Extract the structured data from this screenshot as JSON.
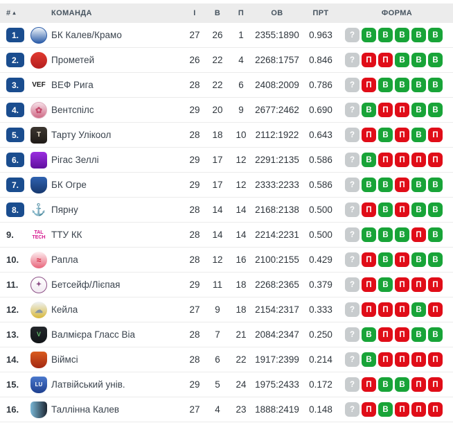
{
  "columns": {
    "rank": "#",
    "team": "КОМАНДА",
    "games": "І",
    "wins": "В",
    "losses": "П",
    "points": "ОВ",
    "pct": "ПРТ",
    "form": "ФОРМА"
  },
  "sort_icon": "▴",
  "colors": {
    "rank_badge": "#1a4d8f",
    "form_win": "#18a438",
    "form_loss": "#e00d18",
    "form_unknown": "#c8ccce",
    "header_bg": "#ececec"
  },
  "form_letters": {
    "win": "В",
    "loss": "П",
    "unknown": "?"
  },
  "table": {
    "rows": [
      {
        "rank": "1.",
        "badge": true,
        "name": "БК Калев/Крамо",
        "games": "27",
        "wins": "26",
        "losses": "1",
        "ov": "2355:1890",
        "pct": "0.963",
        "form": [
          "?",
          "В",
          "В",
          "В",
          "В",
          "В"
        ],
        "logo": {
          "type": "circle",
          "c1": "#f2f6fb",
          "c2": "#2b5ca8",
          "border": "#2b5ca8",
          "text": "",
          "tc": "#ffffff",
          "fs": 9
        }
      },
      {
        "rank": "2.",
        "badge": true,
        "name": "Прометей",
        "games": "26",
        "wins": "22",
        "losses": "4",
        "ov": "2268:1757",
        "pct": "0.846",
        "form": [
          "?",
          "П",
          "П",
          "В",
          "В",
          "В"
        ],
        "logo": {
          "type": "circle",
          "c1": "#e03a30",
          "c2": "#b51f1f",
          "text": "",
          "tc": "#ffffff",
          "fs": 9
        }
      },
      {
        "rank": "3.",
        "badge": true,
        "name": "ВЕФ Рига",
        "games": "28",
        "wins": "22",
        "losses": "6",
        "ov": "2408:2009",
        "pct": "0.786",
        "form": [
          "?",
          "П",
          "В",
          "В",
          "В",
          "В"
        ],
        "logo": {
          "type": "text",
          "text": "VEF",
          "tc": "#1b1b1b",
          "fs": 10
        }
      },
      {
        "rank": "4.",
        "badge": true,
        "name": "Вентспілс",
        "games": "29",
        "wins": "20",
        "losses": "9",
        "ov": "2677:2462",
        "pct": "0.690",
        "form": [
          "?",
          "В",
          "П",
          "П",
          "В",
          "В"
        ],
        "logo": {
          "type": "circle",
          "c1": "#f6dfe7",
          "c2": "#cf6a85",
          "border": "#dfb0bf",
          "text": "✿",
          "tc": "#c2486a",
          "fs": 12
        }
      },
      {
        "rank": "5.",
        "badge": true,
        "name": "Тарту Улікоол",
        "games": "28",
        "wins": "18",
        "losses": "10",
        "ov": "2112:1922",
        "pct": "0.643",
        "form": [
          "?",
          "П",
          "В",
          "П",
          "В",
          "П"
        ],
        "logo": {
          "type": "square",
          "c1": "#3d3731",
          "c2": "#1f1b17",
          "text": "T",
          "tc": "#e8ddc8",
          "fs": 10
        }
      },
      {
        "rank": "6.",
        "badge": true,
        "name": "Рігас Зеллі",
        "games": "29",
        "wins": "17",
        "losses": "12",
        "ov": "2291:2135",
        "pct": "0.586",
        "form": [
          "?",
          "В",
          "П",
          "П",
          "П",
          "П"
        ],
        "logo": {
          "type": "square",
          "c1": "#9b2ee0",
          "c2": "#5f0f9e",
          "text": "",
          "tc": "#ffffff",
          "fs": 9
        }
      },
      {
        "rank": "7.",
        "badge": true,
        "name": "БК Огре",
        "games": "29",
        "wins": "17",
        "losses": "12",
        "ov": "2333:2233",
        "pct": "0.586",
        "form": [
          "?",
          "В",
          "В",
          "П",
          "В",
          "В"
        ],
        "logo": {
          "type": "shield",
          "c1": "#2f62b0",
          "c2": "#16386e",
          "text": "",
          "tc": "#ffffff",
          "fs": 9
        }
      },
      {
        "rank": "8.",
        "badge": true,
        "name": "Пярну",
        "games": "28",
        "wins": "14",
        "losses": "14",
        "ov": "2168:2138",
        "pct": "0.500",
        "form": [
          "?",
          "П",
          "В",
          "П",
          "В",
          "В"
        ],
        "logo": {
          "type": "text",
          "text": "⚓",
          "tc": "#6fbcd8",
          "fs": 17
        }
      },
      {
        "rank": "9.",
        "badge": false,
        "name": "ТТУ КК",
        "games": "28",
        "wins": "14",
        "losses": "14",
        "ov": "2214:2231",
        "pct": "0.500",
        "form": [
          "?",
          "В",
          "В",
          "В",
          "П",
          "В"
        ],
        "logo": {
          "type": "text",
          "text": "TAL\nTECH",
          "tc": "#d4148c",
          "fs": 7
        }
      },
      {
        "rank": "10.",
        "badge": false,
        "name": "Рапла",
        "games": "28",
        "wins": "12",
        "losses": "16",
        "ov": "2100:2155",
        "pct": "0.429",
        "form": [
          "?",
          "П",
          "В",
          "П",
          "В",
          "В"
        ],
        "logo": {
          "type": "circle",
          "c1": "#fdeef0",
          "c2": "#e8647a",
          "text": "≈",
          "tc": "#d42840",
          "fs": 12
        }
      },
      {
        "rank": "11.",
        "badge": false,
        "name": "Бетсейф/Лієпая",
        "games": "29",
        "wins": "11",
        "losses": "18",
        "ov": "2268:2365",
        "pct": "0.379",
        "form": [
          "?",
          "П",
          "В",
          "П",
          "П",
          "П"
        ],
        "logo": {
          "type": "circle",
          "c1": "#ffffff",
          "c2": "#f2eaf2",
          "border": "#8c4f86",
          "text": "✦",
          "tc": "#8c4f86",
          "fs": 10
        }
      },
      {
        "rank": "12.",
        "badge": false,
        "name": "Кейла",
        "games": "27",
        "wins": "9",
        "losses": "18",
        "ov": "2154:2317",
        "pct": "0.333",
        "form": [
          "?",
          "П",
          "П",
          "П",
          "В",
          "П"
        ],
        "logo": {
          "type": "circle",
          "c1": "#eef2f5",
          "c2": "#d8b83a",
          "text": "☁",
          "tc": "#8896a2",
          "fs": 12
        }
      },
      {
        "rank": "13.",
        "badge": false,
        "name": "Валмієра Гласс Віа",
        "games": "28",
        "wins": "7",
        "losses": "21",
        "ov": "2084:2347",
        "pct": "0.250",
        "form": [
          "?",
          "В",
          "П",
          "П",
          "В",
          "В"
        ],
        "logo": {
          "type": "shield",
          "c1": "#23272b",
          "c2": "#121518",
          "text": "V",
          "tc": "#5fb568",
          "fs": 9
        }
      },
      {
        "rank": "14.",
        "badge": false,
        "name": "Віймсі",
        "games": "28",
        "wins": "6",
        "losses": "22",
        "ov": "1917:2399",
        "pct": "0.214",
        "form": [
          "?",
          "В",
          "П",
          "П",
          "П",
          "П"
        ],
        "logo": {
          "type": "shield",
          "c1": "#d95b1e",
          "c2": "#a32813",
          "text": "",
          "tc": "#ffffff",
          "fs": 9
        }
      },
      {
        "rank": "15.",
        "badge": false,
        "name": "Латвійський унів.",
        "games": "29",
        "wins": "5",
        "losses": "24",
        "ov": "1975:2433",
        "pct": "0.172",
        "form": [
          "?",
          "П",
          "В",
          "В",
          "П",
          "П"
        ],
        "logo": {
          "type": "shield",
          "c1": "#4a78cc",
          "c2": "#1e3f8f",
          "text": "LU",
          "tc": "#ffffff",
          "fs": 8
        }
      },
      {
        "rank": "16.",
        "badge": false,
        "name": "Таллінна Калев",
        "games": "27",
        "wins": "4",
        "losses": "23",
        "ov": "1888:2419",
        "pct": "0.148",
        "form": [
          "?",
          "П",
          "В",
          "П",
          "П",
          "П"
        ],
        "logo": {
          "type": "shield",
          "c1": "#79b7d6",
          "c2": "#1d2631",
          "dir": "90deg",
          "text": "",
          "tc": "#ffffff",
          "fs": 9
        }
      }
    ]
  }
}
